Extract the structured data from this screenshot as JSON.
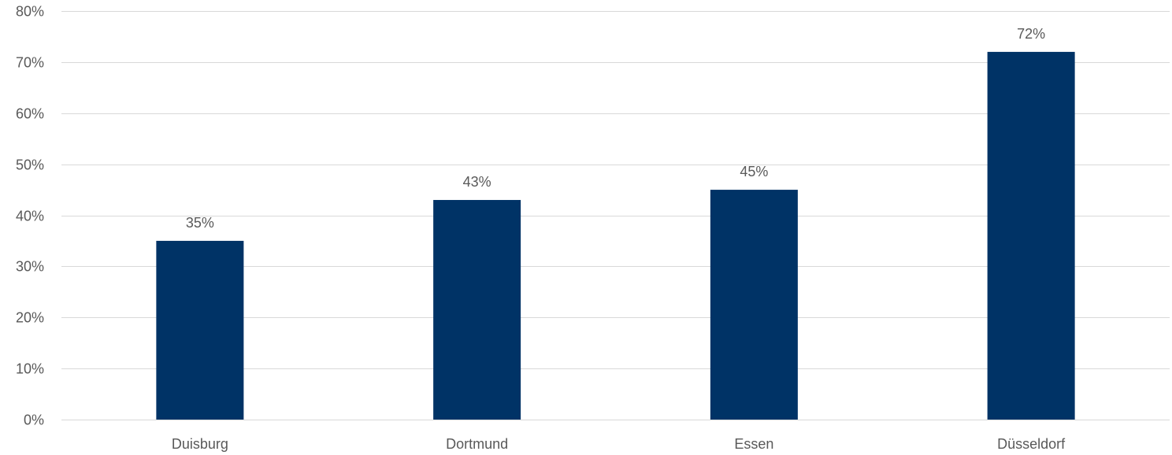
{
  "chart_data": {
    "type": "bar",
    "categories": [
      "Duisburg",
      "Dortmund",
      "Essen",
      "Düsseldorf"
    ],
    "values": [
      35,
      43,
      45,
      72
    ],
    "value_labels": [
      "35%",
      "43%",
      "45%",
      "72%"
    ],
    "title": "",
    "xlabel": "",
    "ylabel": "",
    "ylim": [
      0,
      80
    ],
    "y_ticks": [
      0,
      10,
      20,
      30,
      40,
      50,
      60,
      70,
      80
    ],
    "y_tick_labels": [
      "0%",
      "10%",
      "20%",
      "30%",
      "40%",
      "50%",
      "60%",
      "70%",
      "80%"
    ],
    "grid": true,
    "legend": "none",
    "bar_color": "#003366",
    "label_color": "#595959",
    "grid_color": "#d9d9d9"
  }
}
